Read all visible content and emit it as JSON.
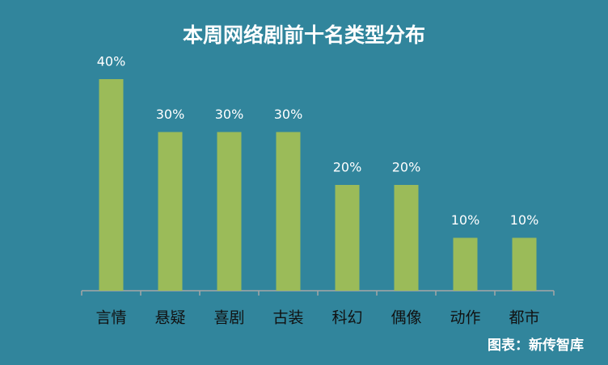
{
  "chart_data": {
    "type": "bar",
    "title": "本周网络剧前十名类型分布",
    "categories": [
      "言情",
      "悬疑",
      "喜剧",
      "古装",
      "科幻",
      "偶像",
      "动作",
      "都市"
    ],
    "values": [
      40,
      30,
      30,
      30,
      20,
      20,
      10,
      10
    ],
    "value_labels": [
      "40%",
      "30%",
      "30%",
      "30%",
      "20%",
      "20%",
      "10%",
      "10%"
    ],
    "color": "#9bbb59",
    "ylim": [
      0,
      40
    ],
    "source": "图表：新传智库"
  }
}
